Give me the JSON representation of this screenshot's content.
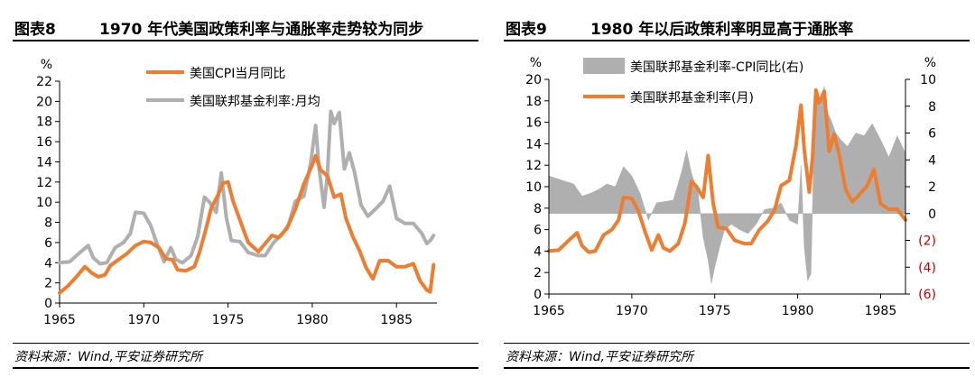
{
  "panels": [
    {
      "fig_no": "图表8",
      "title": "1970 年代美国政策利率与通胀率走势较为同步",
      "source": "资料来源：Wind,平安证券研究所"
    },
    {
      "fig_no": "图表9",
      "title": "1980 年以后政策利率明显高于通胀率",
      "source": "资料来源：Wind,平安证券研究所"
    }
  ],
  "colors": {
    "orange": "#ED7D31",
    "gray": "#AFAFAF",
    "red": "#C00000"
  },
  "chart_data": [
    {
      "type": "line",
      "unit_label": "%",
      "x_range": [
        1965,
        1987.4
      ],
      "x_ticks": [
        1965,
        1970,
        1975,
        1980,
        1985
      ],
      "ylim": [
        0,
        22
      ],
      "y_ticks": [
        0,
        2,
        4,
        6,
        8,
        10,
        12,
        14,
        16,
        18,
        20,
        22
      ],
      "legend_position": "top-center",
      "series": [
        {
          "name": "美国CPI当月同比",
          "color": "#ED7D31",
          "x": [
            1965.0,
            1965.5,
            1966.0,
            1966.5,
            1966.9,
            1967.3,
            1967.7,
            1968.0,
            1968.5,
            1969.0,
            1969.5,
            1970.0,
            1970.4,
            1970.9,
            1971.3,
            1971.7,
            1972.0,
            1972.5,
            1973.0,
            1973.3,
            1973.7,
            1974.0,
            1974.4,
            1974.7,
            1975.0,
            1975.3,
            1975.8,
            1976.2,
            1976.8,
            1977.2,
            1977.6,
            1978.0,
            1978.5,
            1979.0,
            1979.5,
            1980.0,
            1980.2,
            1980.5,
            1980.9,
            1981.3,
            1981.7,
            1982.0,
            1982.4,
            1982.8,
            1983.2,
            1983.6,
            1984.0,
            1984.5,
            1985.0,
            1985.5,
            1986.0,
            1986.4,
            1986.8,
            1987.0,
            1987.2
          ],
          "values": [
            1.0,
            1.7,
            2.6,
            3.6,
            3.0,
            2.6,
            2.8,
            3.7,
            4.3,
            4.9,
            5.7,
            6.1,
            6.0,
            5.5,
            4.4,
            4.3,
            3.3,
            3.2,
            3.6,
            5.0,
            7.4,
            9.4,
            10.7,
            11.9,
            12.0,
            10.1,
            7.8,
            6.0,
            5.1,
            5.9,
            6.7,
            6.5,
            7.4,
            9.3,
            11.8,
            13.7,
            14.6,
            13.2,
            12.6,
            10.5,
            10.8,
            8.4,
            6.6,
            5.2,
            3.5,
            2.4,
            4.2,
            4.2,
            3.6,
            3.6,
            3.9,
            2.2,
            1.3,
            1.1,
            3.8
          ]
        },
        {
          "name": "美国联邦基金利率:月均",
          "color": "#AFAFAF",
          "x": [
            1965.0,
            1965.6,
            1966.2,
            1966.7,
            1967.0,
            1967.4,
            1967.8,
            1968.3,
            1968.8,
            1969.2,
            1969.5,
            1970.0,
            1970.4,
            1970.8,
            1971.2,
            1971.6,
            1971.9,
            1972.3,
            1972.8,
            1973.2,
            1973.6,
            1973.9,
            1974.3,
            1974.6,
            1974.9,
            1975.2,
            1975.7,
            1976.2,
            1976.8,
            1977.2,
            1977.7,
            1978.2,
            1978.6,
            1979.0,
            1979.5,
            1979.9,
            1980.2,
            1980.4,
            1980.7,
            1980.9,
            1981.1,
            1981.3,
            1981.6,
            1981.9,
            1982.2,
            1982.5,
            1982.9,
            1983.3,
            1983.8,
            1984.2,
            1984.6,
            1985.0,
            1985.5,
            1986.0,
            1986.5,
            1986.8,
            1987.0,
            1987.2
          ],
          "values": [
            4.0,
            4.1,
            5.0,
            5.7,
            4.5,
            3.9,
            4.0,
            5.5,
            6.0,
            6.9,
            9.0,
            8.9,
            7.7,
            5.8,
            4.1,
            5.5,
            4.3,
            4.0,
            4.7,
            6.6,
            10.5,
            10.0,
            9.0,
            12.9,
            8.5,
            6.2,
            6.1,
            5.0,
            4.7,
            4.7,
            6.0,
            6.8,
            7.8,
            10.1,
            10.6,
            13.8,
            17.6,
            13.4,
            9.5,
            12.8,
            19.0,
            17.8,
            18.9,
            13.3,
            14.9,
            13.0,
            9.7,
            8.6,
            9.4,
            10.1,
            11.6,
            8.4,
            7.9,
            7.9,
            6.9,
            5.9,
            6.2,
            6.7
          ]
        }
      ]
    },
    {
      "type": "line",
      "left_unit_label": "%",
      "right_unit_label": "%",
      "x_range": [
        1965,
        1986.5
      ],
      "x_ticks": [
        1965,
        1970,
        1975,
        1980,
        1985
      ],
      "ylim_left": [
        0,
        20
      ],
      "y_ticks_left": [
        0,
        2,
        4,
        6,
        8,
        10,
        12,
        14,
        16,
        18,
        20
      ],
      "ylim_right": [
        -6,
        10
      ],
      "y_ticks_right": [
        10,
        8,
        6,
        4,
        2,
        0,
        -2,
        -4,
        -6
      ],
      "y_tick_labels_right": [
        "10",
        "8",
        "6",
        "4",
        "2",
        "0",
        "(2)",
        "(4)",
        "(6)"
      ],
      "legend_position": "top-center",
      "series": [
        {
          "name": "美国联邦基金利率-CPI同比(右)",
          "color": "#AFAFAF",
          "chart_type": "area",
          "axis": "right",
          "x": [
            1965.0,
            1965.5,
            1966.0,
            1966.5,
            1967.0,
            1967.5,
            1968.0,
            1968.5,
            1969.0,
            1969.5,
            1970.0,
            1970.5,
            1971.0,
            1971.5,
            1972.0,
            1972.5,
            1973.0,
            1973.3,
            1973.6,
            1974.0,
            1974.3,
            1974.6,
            1974.8,
            1975.0,
            1975.3,
            1975.6,
            1976.0,
            1976.5,
            1977.0,
            1977.5,
            1978.0,
            1978.5,
            1979.0,
            1979.5,
            1980.0,
            1980.2,
            1980.4,
            1980.6,
            1980.8,
            1981.0,
            1981.2,
            1981.4,
            1981.6,
            1981.8,
            1982.0,
            1982.3,
            1982.6,
            1983.0,
            1983.5,
            1984.0,
            1984.5,
            1985.0,
            1985.5,
            1986.0,
            1986.5
          ],
          "values": [
            2.8,
            2.6,
            2.4,
            2.2,
            1.3,
            1.5,
            1.8,
            2.2,
            2.0,
            3.5,
            2.8,
            1.5,
            -0.5,
            0.8,
            0.9,
            1.0,
            3.1,
            4.7,
            3.0,
            1.5,
            -1.8,
            -3.5,
            -5.2,
            -4.0,
            -2.5,
            -1.2,
            -0.8,
            -1.2,
            -1.5,
            -0.8,
            0.3,
            0.4,
            0.8,
            -0.5,
            -0.8,
            3.6,
            -2.5,
            -5.0,
            -4.5,
            6.5,
            8.5,
            8.0,
            9.5,
            7.5,
            7.0,
            6.0,
            5.5,
            5.0,
            6.0,
            5.8,
            6.7,
            5.5,
            4.2,
            5.8,
            4.5
          ]
        },
        {
          "name": "美国联邦基金利率(月)",
          "color": "#ED7D31",
          "chart_type": "line",
          "axis": "left",
          "x": [
            1965.0,
            1965.6,
            1966.2,
            1966.7,
            1967.0,
            1967.4,
            1967.8,
            1968.3,
            1968.8,
            1969.2,
            1969.5,
            1970.0,
            1970.4,
            1970.8,
            1971.2,
            1971.6,
            1971.9,
            1972.3,
            1972.8,
            1973.2,
            1973.6,
            1973.9,
            1974.3,
            1974.6,
            1974.9,
            1975.2,
            1975.7,
            1976.2,
            1976.8,
            1977.2,
            1977.7,
            1978.2,
            1978.6,
            1979.0,
            1979.5,
            1979.9,
            1980.2,
            1980.4,
            1980.7,
            1980.9,
            1981.1,
            1981.3,
            1981.6,
            1981.9,
            1982.2,
            1982.5,
            1982.9,
            1983.3,
            1983.8,
            1984.2,
            1984.6,
            1985.0,
            1985.5,
            1986.0,
            1986.5
          ],
          "values": [
            4.0,
            4.1,
            5.0,
            5.7,
            4.5,
            3.9,
            4.0,
            5.5,
            6.0,
            6.9,
            9.0,
            8.9,
            7.7,
            5.8,
            4.1,
            5.5,
            4.3,
            4.0,
            4.7,
            6.6,
            10.5,
            10.0,
            9.0,
            12.9,
            8.5,
            6.2,
            6.1,
            5.0,
            4.7,
            4.7,
            6.0,
            6.8,
            7.8,
            10.1,
            10.6,
            13.8,
            17.6,
            13.4,
            9.5,
            12.8,
            19.0,
            17.8,
            18.9,
            13.3,
            14.9,
            13.0,
            9.7,
            8.6,
            9.4,
            10.1,
            11.6,
            8.4,
            7.9,
            7.9,
            6.9
          ]
        }
      ]
    }
  ]
}
